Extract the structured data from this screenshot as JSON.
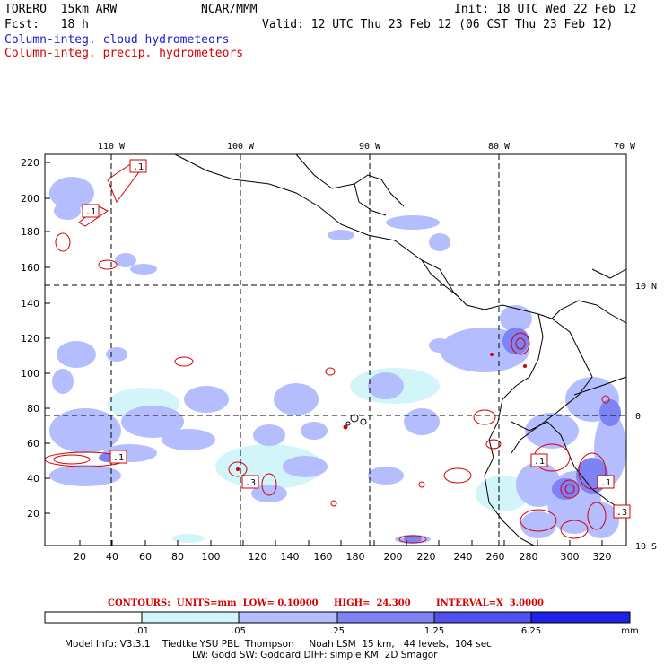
{
  "header": {
    "model": "TORERO  15km ARW",
    "org": "NCAR/MMM",
    "init": "Init: 18 UTC Wed 22 Feb 12",
    "fcst": "Fcst:   18 h",
    "valid": "Valid: 12 UTC Thu 23 Feb 12 (06 CST Thu 23 Feb 12)",
    "field1": "Column-integ. cloud hydrometeors",
    "field2": "Column-integ. precip. hydrometeors",
    "field1_color": "#1a1ad6",
    "field2_color": "#d40000"
  },
  "map": {
    "lon_labels": [
      "110 W",
      "100 W",
      "90 W",
      "80 W",
      "70 W"
    ],
    "lat_labels": [
      "10 N",
      "0",
      "10 S"
    ],
    "y_ticks": [
      "220",
      "200",
      "180",
      "160",
      "140",
      "120",
      "100",
      "80",
      "60",
      "40",
      "20"
    ],
    "x_ticks": [
      "20",
      "40",
      "60",
      "80",
      "100",
      "120",
      "140",
      "160",
      "180",
      "200",
      "220",
      "240",
      "260",
      "280",
      "300",
      "320"
    ],
    "contour_labels": [
      ".1",
      ".1",
      ".1",
      ".1",
      ".3",
      ".1",
      ".3"
    ],
    "contour_color": "#d40000",
    "coast_color": "#000000"
  },
  "contours": {
    "units": "CONTOURS:  UNITS=mm  LOW= 0.10000",
    "high": "HIGH=  24.300",
    "interval": "INTERVAL=X  3.0000"
  },
  "colorbar": {
    "labels": [
      ".01",
      ".05",
      ".25",
      "1.25",
      "6.25"
    ],
    "unit": "mm",
    "colors": [
      "#ffffff",
      "#d2f5fa",
      "#b4beff",
      "#7d82f5",
      "#5050ee",
      "#2020e6"
    ]
  },
  "footer": {
    "line1": "Model Info: V3.3.1    Tiedtke YSU PBL  Thompson     Noah LSM  15 km,   44 levels,  104 sec",
    "line2": "LW: Godd SW: Goddard DIFF: simple KM: 2D Smagor"
  }
}
